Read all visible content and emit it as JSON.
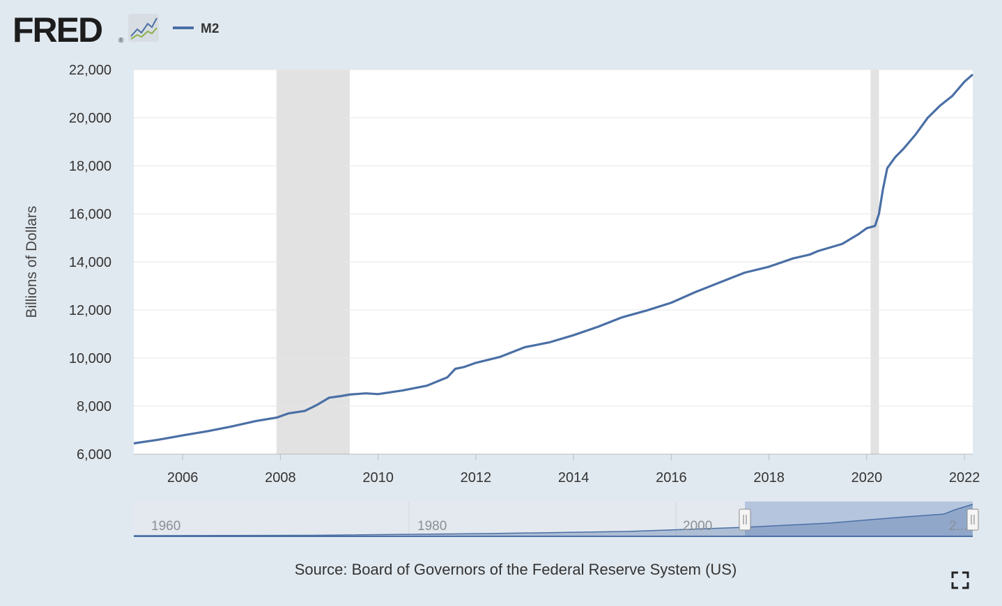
{
  "header": {
    "logo_text": "FRED",
    "logo_registered": "®",
    "logo_icon": "line-graph-icon",
    "legend_series": "M2"
  },
  "footer": {
    "source": "Source: Board of Governors of the Federal Reserve System (US)",
    "fullscreen_icon": "fullscreen-icon"
  },
  "colors": {
    "series": "#4a6fa5",
    "recession": "#e2e2e2",
    "navigator_fill": "#a5b8d8",
    "background": "#e1e9f0"
  },
  "chart_data": {
    "type": "line",
    "title": "",
    "xlabel": "",
    "ylabel": "Billions of Dollars",
    "xlim": [
      2005.0,
      2022.17
    ],
    "ylim": [
      6000,
      22000
    ],
    "x_ticks": [
      2006,
      2008,
      2010,
      2012,
      2014,
      2016,
      2018,
      2020,
      2022
    ],
    "y_ticks": [
      6000,
      8000,
      10000,
      12000,
      14000,
      16000,
      18000,
      20000,
      22000
    ],
    "grid": true,
    "legend": "top-left",
    "recessions": [
      [
        2007.92,
        2009.42
      ],
      [
        2020.08,
        2020.25
      ]
    ],
    "series": [
      {
        "name": "M2",
        "x": [
          2005.0,
          2005.5,
          2006.0,
          2006.5,
          2007.0,
          2007.5,
          2007.92,
          2008.17,
          2008.5,
          2008.75,
          2009.0,
          2009.25,
          2009.42,
          2009.75,
          2010.0,
          2010.5,
          2011.0,
          2011.42,
          2011.58,
          2011.75,
          2012.0,
          2012.5,
          2013.0,
          2013.5,
          2014.0,
          2014.5,
          2015.0,
          2015.5,
          2016.0,
          2016.5,
          2017.0,
          2017.5,
          2018.0,
          2018.5,
          2018.83,
          2019.0,
          2019.5,
          2019.83,
          2020.0,
          2020.17,
          2020.25,
          2020.33,
          2020.42,
          2020.58,
          2020.75,
          2021.0,
          2021.25,
          2021.5,
          2021.75,
          2022.0,
          2022.17
        ],
        "values": [
          6450,
          6600,
          6780,
          6950,
          7150,
          7380,
          7520,
          7700,
          7800,
          8050,
          8350,
          8420,
          8480,
          8530,
          8500,
          8650,
          8850,
          9200,
          9550,
          9620,
          9800,
          10050,
          10450,
          10650,
          10950,
          11300,
          11700,
          11980,
          12300,
          12750,
          13150,
          13550,
          13800,
          14150,
          14300,
          14450,
          14750,
          15150,
          15400,
          15500,
          16000,
          17000,
          17900,
          18350,
          18700,
          19300,
          20000,
          20500,
          20900,
          21500,
          21800
        ]
      }
    ],
    "navigator": {
      "labels": [
        "1960",
        "1980",
        "2000",
        "2..."
      ],
      "selected_range": [
        2005.0,
        2022.17
      ]
    }
  }
}
